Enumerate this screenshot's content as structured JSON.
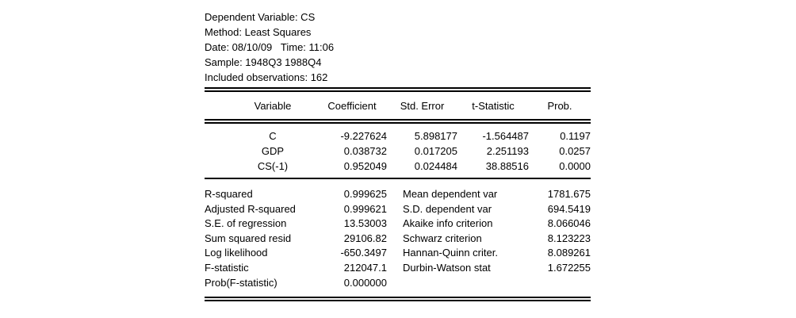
{
  "colors": {
    "background": "#ffffff",
    "text": "#000000",
    "rule": "#000000"
  },
  "report": {
    "header_lines": [
      "Dependent Variable: CS",
      "Method: Least Squares",
      "Date: 08/10/09   Time: 11:06",
      "Sample: 1948Q3 1988Q4",
      "Included observations: 162"
    ],
    "coef_table": {
      "columns": [
        "Variable",
        "Coefficient",
        "Std. Error",
        "t-Statistic",
        "Prob."
      ],
      "rows": [
        [
          "C",
          "-9.227624",
          "5.898177",
          "-1.564487",
          "0.1197"
        ],
        [
          "GDP",
          "0.038732",
          "0.017205",
          "2.251193",
          "0.0257"
        ],
        [
          "CS(-1)",
          "0.952049",
          "0.024484",
          "38.88516",
          "0.0000"
        ]
      ]
    },
    "stats": {
      "left": [
        {
          "label": "R-squared",
          "value": "0.999625"
        },
        {
          "label": "Adjusted R-squared",
          "value": "0.999621"
        },
        {
          "label": "S.E. of regression",
          "value": "13.53003"
        },
        {
          "label": "Sum squared resid",
          "value": "29106.82"
        },
        {
          "label": "Log likelihood",
          "value": "-650.3497"
        },
        {
          "label": "F-statistic",
          "value": "212047.1"
        },
        {
          "label": "Prob(F-statistic)",
          "value": "0.000000"
        }
      ],
      "right": [
        {
          "label": "Mean dependent var",
          "value": "1781.675"
        },
        {
          "label": "S.D. dependent var",
          "value": "694.5419"
        },
        {
          "label": "Akaike info criterion",
          "value": "8.066046"
        },
        {
          "label": "Schwarz criterion",
          "value": "8.123223"
        },
        {
          "label": "Hannan-Quinn criter.",
          "value": "8.089261"
        },
        {
          "label": "Durbin-Watson stat",
          "value": "1.672255"
        }
      ]
    }
  }
}
